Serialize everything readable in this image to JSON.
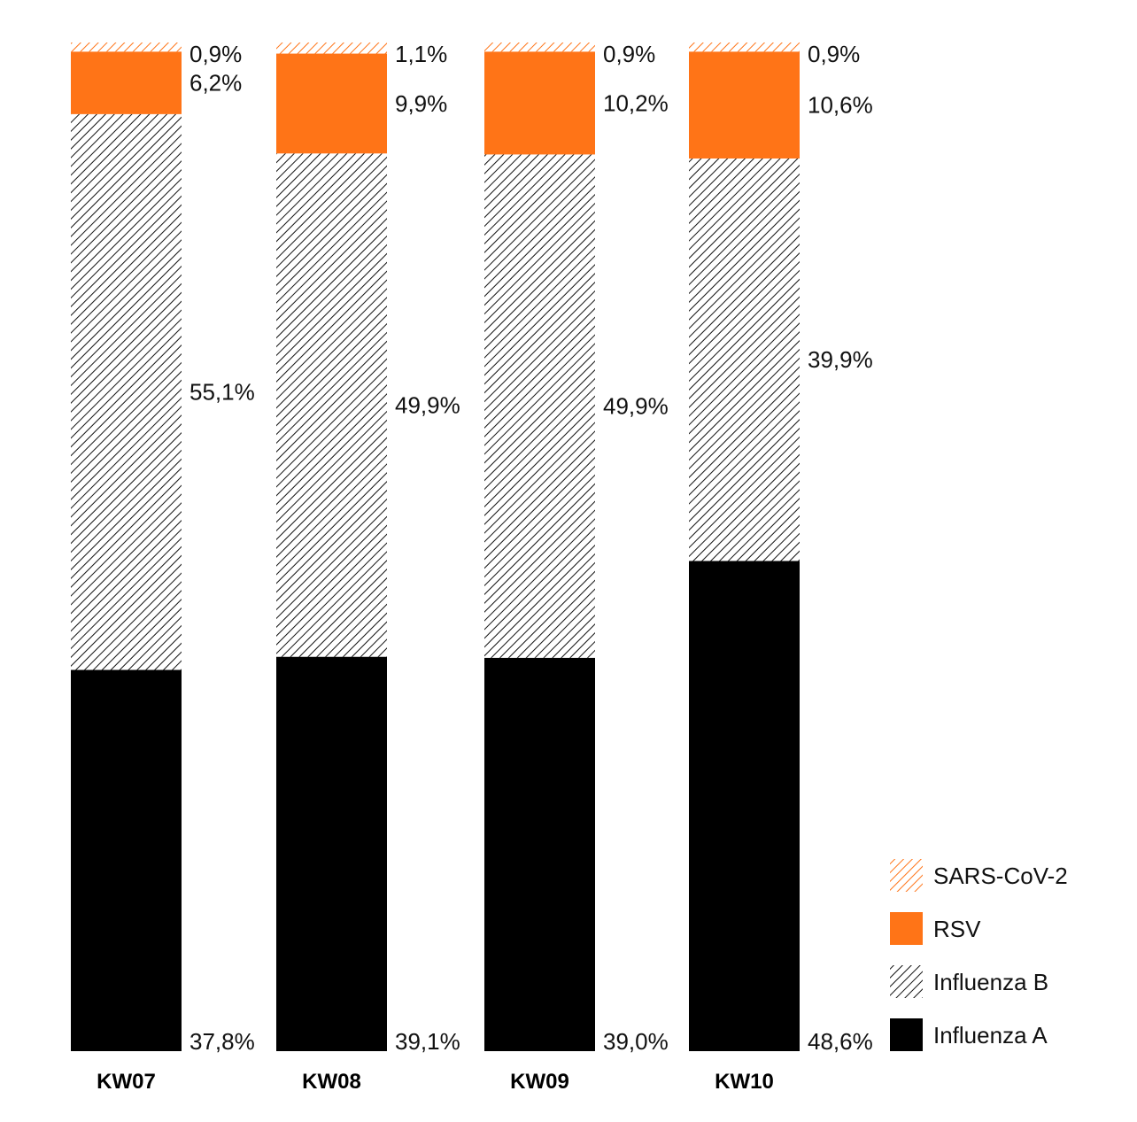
{
  "chart_data": {
    "type": "bar",
    "stacked": true,
    "categories": [
      "KW07",
      "KW08",
      "KW09",
      "KW10"
    ],
    "series": [
      {
        "name": "Influenza A",
        "values": [
          37.8,
          39.1,
          39.0,
          48.6
        ],
        "labels": [
          "37,8%",
          "39,1%",
          "39,0%",
          "48,6%"
        ],
        "color": "#000000",
        "pattern": "solid"
      },
      {
        "name": "Influenza B",
        "values": [
          55.1,
          49.9,
          49.9,
          39.9
        ],
        "labels": [
          "55,1%",
          "49,9%",
          "49,9%",
          "39,9%"
        ],
        "color": "#000000",
        "pattern": "hatch"
      },
      {
        "name": "RSV",
        "values": [
          6.2,
          9.9,
          10.2,
          10.6
        ],
        "labels": [
          "6,2%",
          "9,9%",
          "10,2%",
          "10,6%"
        ],
        "color": "#ff7417",
        "pattern": "solid"
      },
      {
        "name": "SARS-CoV-2",
        "values": [
          0.9,
          1.1,
          0.9,
          0.9
        ],
        "labels": [
          "0,9%",
          "1,1%",
          "0,9%",
          "0,9%"
        ],
        "color": "#ff7417",
        "pattern": "hatch"
      }
    ],
    "legend": {
      "position": "bottom-right",
      "items": [
        "SARS-CoV-2",
        "RSV",
        "Influenza B",
        "Influenza A"
      ]
    },
    "ylim": [
      0,
      100
    ],
    "grid": false
  }
}
